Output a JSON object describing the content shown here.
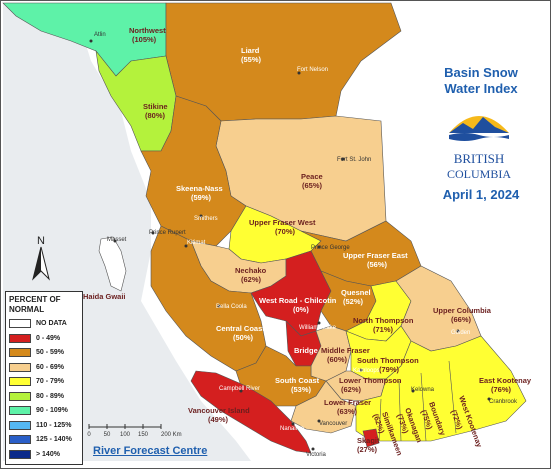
{
  "title": [
    "Basin Snow",
    "Water Index"
  ],
  "logo_text": [
    "BRITISH",
    "COLUMBIA"
  ],
  "date": "April 1, 2024",
  "north_label": "N",
  "legend": {
    "title": [
      "PERCENT OF",
      "NORMAL"
    ],
    "items": [
      {
        "label": "NO DATA",
        "color": "#ffffff"
      },
      {
        "label": "0 - 49%",
        "color": "#d41f1f"
      },
      {
        "label": "50 - 59%",
        "color": "#d4891c"
      },
      {
        "label": "60 - 69%",
        "color": "#f7cf8f"
      },
      {
        "label": "70 - 79%",
        "color": "#ffff33"
      },
      {
        "label": "80 - 89%",
        "color": "#b4f23c"
      },
      {
        "label": "90 - 109%",
        "color": "#5ef2a8"
      },
      {
        "label": "110 - 125%",
        "color": "#55b8f2"
      },
      {
        "label": "125 - 140%",
        "color": "#2a5fc8"
      },
      {
        "label": "> 140%",
        "color": "#0c2a8a"
      }
    ]
  },
  "scale": {
    "labels": [
      "0",
      "50",
      "100",
      "150",
      "200 Km"
    ]
  },
  "footer_link": "River Forecast Centre",
  "basins": [
    {
      "name": "Northwest",
      "value": "(105%)"
    },
    {
      "name": "Liard",
      "value": "(55%)"
    },
    {
      "name": "Stikine",
      "value": "(80%)"
    },
    {
      "name": "Peace",
      "value": "(65%)"
    },
    {
      "name": "Skeena-Nass",
      "value": "(59%)"
    },
    {
      "name": "Upper Fraser West",
      "value": "(70%)"
    },
    {
      "name": "Upper Fraser East",
      "value": "(56%)"
    },
    {
      "name": "Nechako",
      "value": "(62%)"
    },
    {
      "name": "West Road - Chilcotin",
      "value": "(0%)"
    },
    {
      "name": "Quesnel",
      "value": "(52%)"
    },
    {
      "name": "Upper Columbia",
      "value": "(66%)"
    },
    {
      "name": "North Thompson",
      "value": "(71%)"
    },
    {
      "name": "Central Coast",
      "value": "(50%)"
    },
    {
      "name": "Bridge",
      "value": ""
    },
    {
      "name": "Middle Fraser",
      "value": "(60%)"
    },
    {
      "name": "South Thompson",
      "value": "(79%)"
    },
    {
      "name": "Lower Thompson",
      "value": "(62%)"
    },
    {
      "name": "East Kootenay",
      "value": "(76%)"
    },
    {
      "name": "South Coast",
      "value": "(53%)"
    },
    {
      "name": "Lower Fraser",
      "value": "(63%)"
    },
    {
      "name": "Vancouver Island",
      "value": "(49%)"
    },
    {
      "name": "Skagit",
      "value": "(27%)"
    },
    {
      "name": "Similkameen",
      "value": "(62%)"
    },
    {
      "name": "Okanagan",
      "value": "(73%)"
    },
    {
      "name": "Boundary",
      "value": "(75%)"
    },
    {
      "name": "West Kootenay",
      "value": "(72%)"
    },
    {
      "name": "Haida Gwaii",
      "value": ""
    }
  ],
  "cities": [
    "Atlin",
    "Fort Nelson",
    "Fort St. John",
    "Smithers",
    "Prince Rupert",
    "Kitimat",
    "Masset",
    "Prince George",
    "Bella Coola",
    "Williams Lake",
    "Golden",
    "Kamloops",
    "Kelowna",
    "Cranbrook",
    "Campbell River",
    "Vancouver",
    "Nanaimo",
    "Victoria"
  ]
}
